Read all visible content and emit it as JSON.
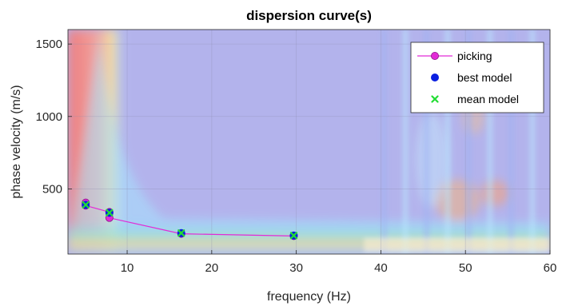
{
  "chart_data": {
    "type": "scatter",
    "title": "dispersion curve(s)",
    "xlabel": "frequency (Hz)",
    "ylabel": "phase velocity (m/s)",
    "xlim": [
      3,
      60
    ],
    "ylim": [
      50,
      1600
    ],
    "xticks": [
      10,
      20,
      30,
      40,
      50,
      60
    ],
    "yticks": [
      500,
      1000,
      1500
    ],
    "grid": true,
    "legend_position": "top-right",
    "background": "dispersion image (spectral energy colormap)",
    "series": [
      {
        "name": "picking",
        "marker": "circle-line",
        "color": "#e22ad6",
        "x": [
          5.1,
          5.1,
          7.9,
          7.9,
          16.4,
          29.7
        ],
        "y": [
          405,
          385,
          340,
          300,
          190,
          175
        ]
      },
      {
        "name": "best model",
        "marker": "dot",
        "color": "#0a1fe0",
        "x": [
          5.1,
          7.9,
          16.4,
          29.7
        ],
        "y": [
          390,
          335,
          195,
          178
        ]
      },
      {
        "name": "mean model",
        "marker": "x",
        "color": "#22dd33",
        "x": [
          5.1,
          7.9,
          16.4,
          29.7
        ],
        "y": [
          390,
          335,
          195,
          178
        ]
      }
    ]
  }
}
